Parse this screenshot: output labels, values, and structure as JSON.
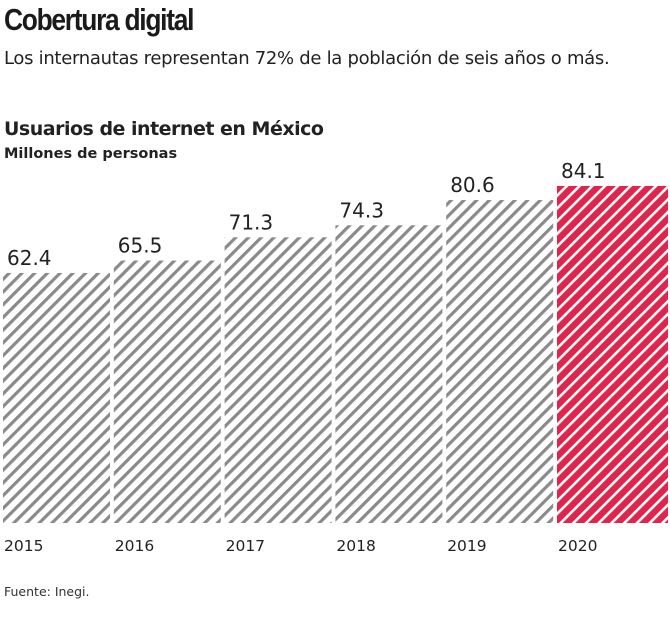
{
  "title": "Cobertura digital",
  "subtitle": "Los internautas representan 72% de la población de seis años o más.",
  "source": "Fuente: Inegi.",
  "chart_data": {
    "type": "bar",
    "title": "Usuarios de internet en México",
    "ylabel": "Millones de personas",
    "categories": [
      "2015",
      "2016",
      "2017",
      "2018",
      "2019",
      "2020"
    ],
    "values": [
      62.4,
      65.5,
      71.3,
      74.3,
      80.6,
      84.1
    ],
    "labels": [
      "62.4",
      "65.5",
      "71.3",
      "74.3",
      "80.6",
      "84.1"
    ],
    "ylim": [
      0,
      84.1
    ],
    "grid": false,
    "colors": {
      "default": "#8a8a8a",
      "highlight": "#e0244b"
    },
    "highlight_index": 5
  }
}
